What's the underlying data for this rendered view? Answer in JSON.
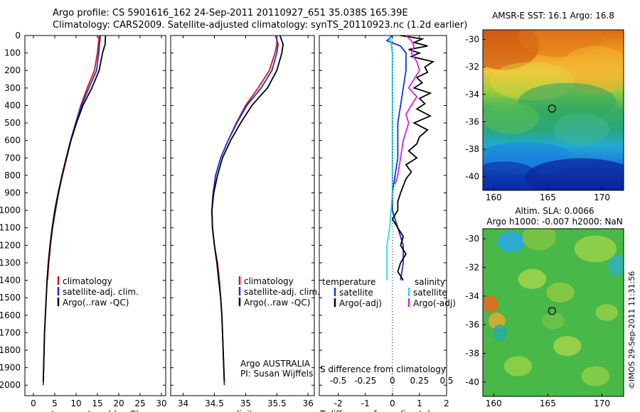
{
  "header": {
    "line1": "Argo profile: CS 5901616_162 24-Sep-2011 20110927_651 35.038S 165.39E",
    "line2": "Climatology: CARS2009. Satellite-adjusted climatology: synTS_20110923.nc (1.2d earlier)"
  },
  "colors": {
    "climatology": "#dd1111",
    "satellite": "#1133dd",
    "argo": "#000000",
    "sal_sat": "#22dddd",
    "sal_argo": "#dd22dd"
  },
  "chart_data": [
    {
      "type": "line",
      "xlabel": "temperature (deg C)",
      "xticks": [
        0,
        5,
        10,
        15,
        20,
        25,
        30
      ],
      "xlim": [
        -2,
        31
      ],
      "ylim": [
        0,
        2060
      ],
      "yticks": [
        0,
        100,
        200,
        300,
        400,
        500,
        600,
        700,
        800,
        900,
        1000,
        1100,
        1200,
        1300,
        1400,
        1500,
        1600,
        1700,
        1800,
        1900,
        2000
      ],
      "legend": [
        "climatology",
        "satellite-adj. clim.",
        "Argo(..raw -QC)"
      ],
      "series": [
        {
          "name": "climatology",
          "color": "#dd1111",
          "points": [
            [
              15.4,
              0
            ],
            [
              15.2,
              50
            ],
            [
              15.0,
              100
            ],
            [
              14.3,
              200
            ],
            [
              12.6,
              300
            ],
            [
              11.1,
              400
            ],
            [
              9.9,
              500
            ],
            [
              8.8,
              600
            ],
            [
              7.8,
              700
            ],
            [
              6.8,
              800
            ],
            [
              5.9,
              900
            ],
            [
              5.2,
              1000
            ],
            [
              4.5,
              1100
            ],
            [
              4.0,
              1200
            ],
            [
              3.6,
              1300
            ],
            [
              3.3,
              1400
            ]
          ]
        },
        {
          "name": "satellite-adj. clim.",
          "color": "#1133dd",
          "points": [
            [
              15.7,
              0
            ],
            [
              15.5,
              50
            ],
            [
              15.3,
              100
            ],
            [
              14.8,
              200
            ],
            [
              13.0,
              300
            ],
            [
              11.3,
              400
            ],
            [
              9.9,
              500
            ],
            [
              8.7,
              600
            ],
            [
              7.7,
              700
            ],
            [
              6.7,
              800
            ],
            [
              5.9,
              900
            ],
            [
              5.1,
              1000
            ],
            [
              4.4,
              1100
            ],
            [
              3.9,
              1200
            ],
            [
              3.5,
              1300
            ],
            [
              3.2,
              1400
            ],
            [
              3.0,
              1500
            ],
            [
              2.8,
              1600
            ],
            [
              2.6,
              1700
            ],
            [
              2.5,
              1800
            ],
            [
              2.4,
              1900
            ],
            [
              2.3,
              2000
            ]
          ]
        },
        {
          "name": "Argo(..raw -QC)",
          "color": "#000000",
          "points": [
            [
              16.9,
              0
            ],
            [
              16.8,
              50
            ],
            [
              16.2,
              100
            ],
            [
              15.4,
              200
            ],
            [
              13.7,
              300
            ],
            [
              11.6,
              400
            ],
            [
              10.1,
              500
            ],
            [
              8.8,
              600
            ],
            [
              7.7,
              700
            ],
            [
              6.7,
              800
            ],
            [
              5.8,
              900
            ],
            [
              5.0,
              1000
            ],
            [
              4.4,
              1100
            ],
            [
              3.9,
              1200
            ],
            [
              3.5,
              1300
            ],
            [
              3.2,
              1400
            ],
            [
              3.0,
              1500
            ],
            [
              2.8,
              1600
            ],
            [
              2.6,
              1700
            ],
            [
              2.5,
              1800
            ],
            [
              2.4,
              1900
            ],
            [
              2.3,
              1980
            ]
          ]
        }
      ]
    },
    {
      "type": "line",
      "xlabel": "salinity",
      "xticks": [
        34,
        34.5,
        35,
        35.5,
        36
      ],
      "xlim": [
        33.8,
        36.1
      ],
      "ylim": [
        0,
        2060
      ],
      "legend": [
        "climatology",
        "satellite-adj. clim.",
        "Argo(..raw -QC)"
      ],
      "annotation": [
        "Argo AUSTRALIA",
        "PI: Susan Wijffels"
      ],
      "series": [
        {
          "name": "climatology",
          "color": "#dd1111",
          "points": [
            [
              35.5,
              0
            ],
            [
              35.5,
              50
            ],
            [
              35.47,
              100
            ],
            [
              35.38,
              200
            ],
            [
              35.2,
              300
            ],
            [
              35.0,
              400
            ],
            [
              34.85,
              500
            ],
            [
              34.72,
              600
            ],
            [
              34.6,
              700
            ],
            [
              34.52,
              800
            ],
            [
              34.48,
              900
            ],
            [
              34.46,
              1000
            ],
            [
              34.47,
              1100
            ],
            [
              34.5,
              1200
            ],
            [
              34.55,
              1300
            ],
            [
              34.58,
              1400
            ],
            [
              34.6,
              1500
            ]
          ]
        },
        {
          "name": "satellite-adj. clim.",
          "color": "#1133dd",
          "points": [
            [
              35.48,
              0
            ],
            [
              35.52,
              50
            ],
            [
              35.5,
              100
            ],
            [
              35.42,
              200
            ],
            [
              35.25,
              300
            ],
            [
              35.02,
              400
            ],
            [
              34.86,
              500
            ],
            [
              34.72,
              600
            ],
            [
              34.6,
              700
            ],
            [
              34.52,
              800
            ],
            [
              34.48,
              900
            ],
            [
              34.46,
              1000
            ],
            [
              34.47,
              1100
            ],
            [
              34.5,
              1200
            ],
            [
              34.54,
              1300
            ],
            [
              34.57,
              1400
            ],
            [
              34.6,
              1500
            ],
            [
              34.62,
              1600
            ],
            [
              34.63,
              1700
            ],
            [
              34.64,
              1800
            ],
            [
              34.65,
              1900
            ],
            [
              34.66,
              2000
            ]
          ]
        },
        {
          "name": "Argo(..raw -QC)",
          "color": "#000000",
          "points": [
            [
              35.55,
              0
            ],
            [
              35.6,
              50
            ],
            [
              35.58,
              100
            ],
            [
              35.5,
              200
            ],
            [
              35.35,
              300
            ],
            [
              35.1,
              400
            ],
            [
              34.92,
              500
            ],
            [
              34.76,
              600
            ],
            [
              34.63,
              700
            ],
            [
              34.55,
              800
            ],
            [
              34.49,
              900
            ],
            [
              34.46,
              1000
            ],
            [
              34.47,
              1100
            ],
            [
              34.5,
              1200
            ],
            [
              34.54,
              1300
            ],
            [
              34.57,
              1400
            ],
            [
              34.6,
              1500
            ],
            [
              34.62,
              1600
            ],
            [
              34.63,
              1700
            ],
            [
              34.64,
              1800
            ],
            [
              34.65,
              1900
            ],
            [
              34.66,
              1980
            ]
          ]
        }
      ]
    },
    {
      "type": "line",
      "xlabel": "T difference from climatology",
      "x2label": "S difference from climatology",
      "xticks": [
        -2,
        -1,
        0,
        1,
        2
      ],
      "xlim": [
        -2.7,
        2.0
      ],
      "x2ticks": [
        "-0.5",
        "-0.25",
        "0",
        "0.25",
        "0.5"
      ],
      "ylim": [
        0,
        2060
      ],
      "legend_titles": [
        "temperature",
        "salinity"
      ],
      "legend": [
        "satellite",
        "Argo(-adj)",
        "satellite",
        "Argo(-adj)"
      ],
      "series": [
        {
          "name": "satellite",
          "color": "#1133dd",
          "points": [
            [
              0,
              0
            ],
            [
              -0.2,
              30
            ],
            [
              0.3,
              60
            ],
            [
              0.5,
              100
            ],
            [
              0.5,
              200
            ],
            [
              0.4,
              300
            ],
            [
              0.3,
              400
            ],
            [
              0.2,
              500
            ],
            [
              0.2,
              600
            ],
            [
              0.2,
              700
            ],
            [
              0.1,
              800
            ],
            [
              0.0,
              900
            ],
            [
              0.0,
              1000
            ],
            [
              0.2,
              1100
            ],
            [
              0.4,
              1200
            ],
            [
              0.4,
              1300
            ],
            [
              0.3,
              1400
            ]
          ]
        },
        {
          "name": "Argo(-adj)",
          "color": "#000000",
          "points": [
            [
              0.3,
              0
            ],
            [
              1.1,
              20
            ],
            [
              0.8,
              40
            ],
            [
              1.3,
              60
            ],
            [
              0.6,
              80
            ],
            [
              1.0,
              100
            ],
            [
              0.7,
              120
            ],
            [
              1.5,
              150
            ],
            [
              1.2,
              180
            ],
            [
              1.3,
              210
            ],
            [
              0.9,
              240
            ],
            [
              1.1,
              270
            ],
            [
              0.8,
              300
            ],
            [
              1.4,
              330
            ],
            [
              1.0,
              360
            ],
            [
              1.2,
              390
            ],
            [
              0.9,
              420
            ],
            [
              1.4,
              460
            ],
            [
              0.8,
              500
            ],
            [
              1.3,
              540
            ],
            [
              1.0,
              580
            ],
            [
              0.9,
              620
            ],
            [
              0.6,
              660
            ],
            [
              0.9,
              700
            ],
            [
              0.5,
              740
            ],
            [
              0.7,
              780
            ],
            [
              0.5,
              820
            ],
            [
              0.4,
              860
            ],
            [
              0.3,
              900
            ],
            [
              0.2,
              950
            ],
            [
              0.2,
              1000
            ],
            [
              0.0,
              1050
            ],
            [
              0.2,
              1100
            ],
            [
              0.4,
              1150
            ],
            [
              0.3,
              1200
            ],
            [
              0.5,
              1250
            ],
            [
              0.3,
              1300
            ],
            [
              0.2,
              1350
            ],
            [
              0.4,
              1400
            ]
          ]
        },
        {
          "name": "satellite",
          "color": "#22dddd",
          "points": [
            [
              -0.1,
              0
            ],
            [
              0.0,
              100
            ],
            [
              0.0,
              300
            ],
            [
              0.0,
              500
            ],
            [
              0.0,
              700
            ],
            [
              0.0,
              900
            ],
            [
              -0.1,
              1100
            ],
            [
              -0.2,
              1200
            ],
            [
              -0.2,
              1300
            ],
            [
              -0.2,
              1400
            ]
          ]
        },
        {
          "name": "Argo(-adj)",
          "color": "#dd22dd",
          "points": [
            [
              0.5,
              0
            ],
            [
              0.7,
              30
            ],
            [
              0.8,
              60
            ],
            [
              0.7,
              100
            ],
            [
              0.9,
              150
            ],
            [
              1.0,
              200
            ],
            [
              0.8,
              250
            ],
            [
              0.6,
              300
            ],
            [
              0.9,
              350
            ],
            [
              0.7,
              400
            ],
            [
              0.5,
              450
            ],
            [
              0.6,
              500
            ],
            [
              0.4,
              600
            ],
            [
              0.3,
              700
            ],
            [
              0.2,
              800
            ],
            [
              0.1,
              850
            ]
          ]
        }
      ]
    },
    {
      "type": "heatmap",
      "title": "AMSR-E SST: 16.1 Argo: 16.8",
      "xticks": [
        160,
        165,
        170
      ],
      "yticks": [
        -30,
        -32,
        -34,
        -36,
        -38,
        -40
      ],
      "xlim": [
        159,
        172
      ],
      "ylim": [
        -41,
        -29.3
      ],
      "marker": [
        165.39,
        -35.04
      ]
    },
    {
      "type": "heatmap",
      "title_lines": [
        "Altim. SLA: 0.0066",
        "Argo h1000: -0.007 h2000: NaN"
      ],
      "xticks": [
        160,
        165,
        170
      ],
      "yticks": [
        -30,
        -32,
        -34,
        -36,
        -38,
        -40
      ],
      "xlim": [
        159,
        172
      ],
      "ylim": [
        -41,
        -29.3
      ],
      "marker": [
        165.39,
        -35.04
      ],
      "side_label": "©IMOS 29-Sep-2011 11:31:56"
    }
  ]
}
